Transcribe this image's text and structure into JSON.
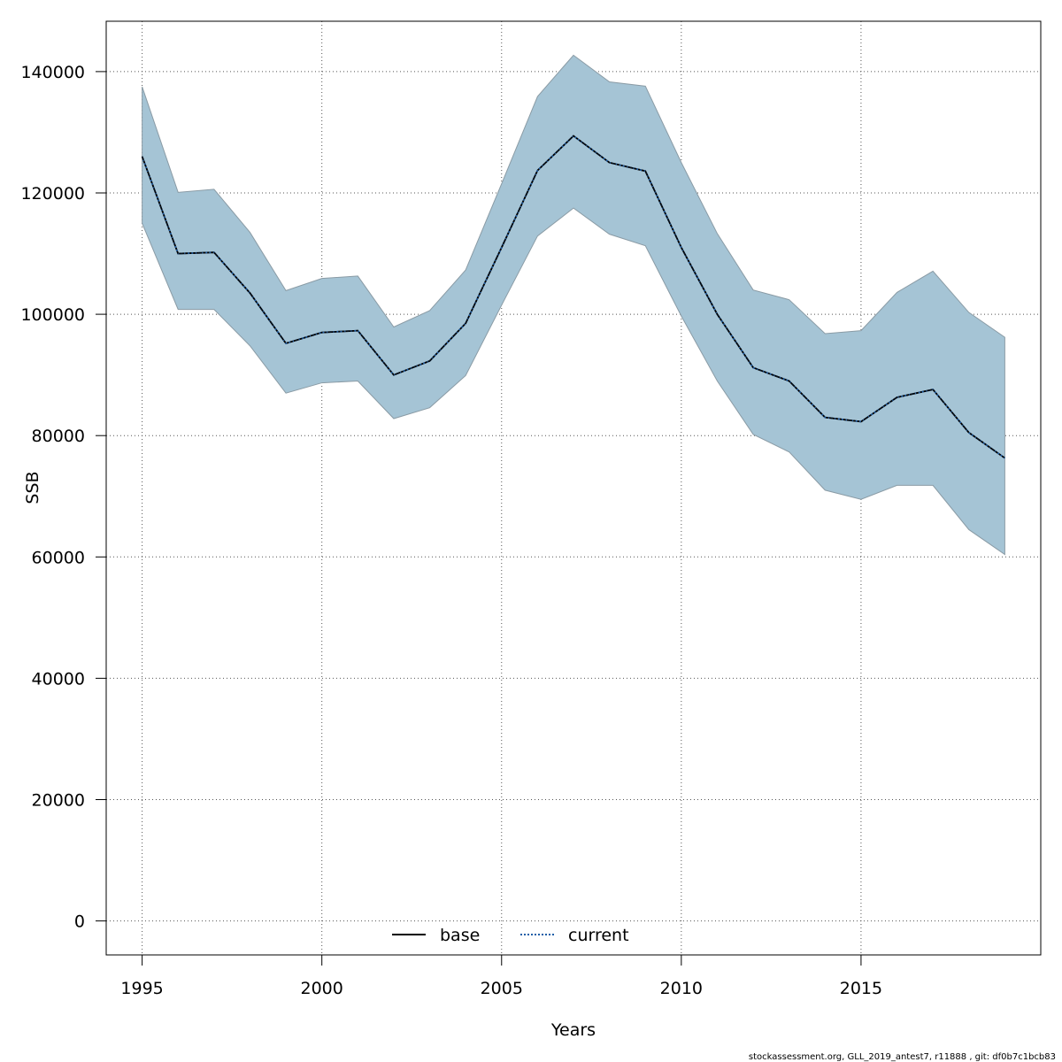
{
  "chart_data": {
    "type": "line",
    "xlabel": "Years",
    "ylabel": "SSB",
    "xlim": [
      1994,
      2020
    ],
    "ylim": [
      -5600,
      148300
    ],
    "x_ticks": [
      1995,
      2000,
      2005,
      2010,
      2015
    ],
    "y_ticks": [
      0,
      20000,
      40000,
      60000,
      80000,
      100000,
      120000,
      140000
    ],
    "grid": true,
    "legend_position": "bottom-center",
    "x": [
      1995,
      1996,
      1997,
      1998,
      1999,
      2000,
      2001,
      2002,
      2003,
      2004,
      2005,
      2006,
      2007,
      2008,
      2009,
      2010,
      2011,
      2012,
      2013,
      2014,
      2015,
      2016,
      2017,
      2018,
      2019
    ],
    "series": [
      {
        "name": "base",
        "line_style": "solid",
        "color": "#000000",
        "values": [
          126000,
          110000,
          110200,
          103500,
          95200,
          97000,
          97300,
          90000,
          92300,
          98500,
          111000,
          123700,
          129400,
          125000,
          123600,
          111000,
          100000,
          91200,
          89000,
          83000,
          82300,
          86300,
          87600,
          80500,
          76300
        ]
      },
      {
        "name": "current",
        "line_style": "dotted",
        "color": "#1f5fa8",
        "values": [
          126000,
          110000,
          110200,
          103500,
          95200,
          97000,
          97300,
          90000,
          92300,
          98500,
          111000,
          123700,
          129400,
          125000,
          123600,
          111000,
          100000,
          91200,
          89000,
          83000,
          82300,
          86300,
          87600,
          80500,
          76300
        ]
      }
    ],
    "band": {
      "lower": [
        115000,
        100800,
        100800,
        94800,
        87000,
        88700,
        89000,
        82800,
        84600,
        89900,
        101500,
        112900,
        117500,
        113200,
        111300,
        99700,
        89000,
        80200,
        77300,
        71000,
        69500,
        71800,
        71800,
        64500,
        60400
      ],
      "upper": [
        137500,
        120100,
        120600,
        113500,
        103900,
        105900,
        106300,
        97900,
        100600,
        107300,
        121500,
        135900,
        142700,
        138300,
        137600,
        125000,
        113300,
        104000,
        102400,
        96800,
        97300,
        103600,
        107100,
        100300,
        96200
      ],
      "fill_color": "#a5c4d5",
      "edge_color": "#8a9ba5"
    },
    "footer": "stockassessment.org, GLL_2019_antest7, r11888 , git: df0b7c1bcb83"
  }
}
